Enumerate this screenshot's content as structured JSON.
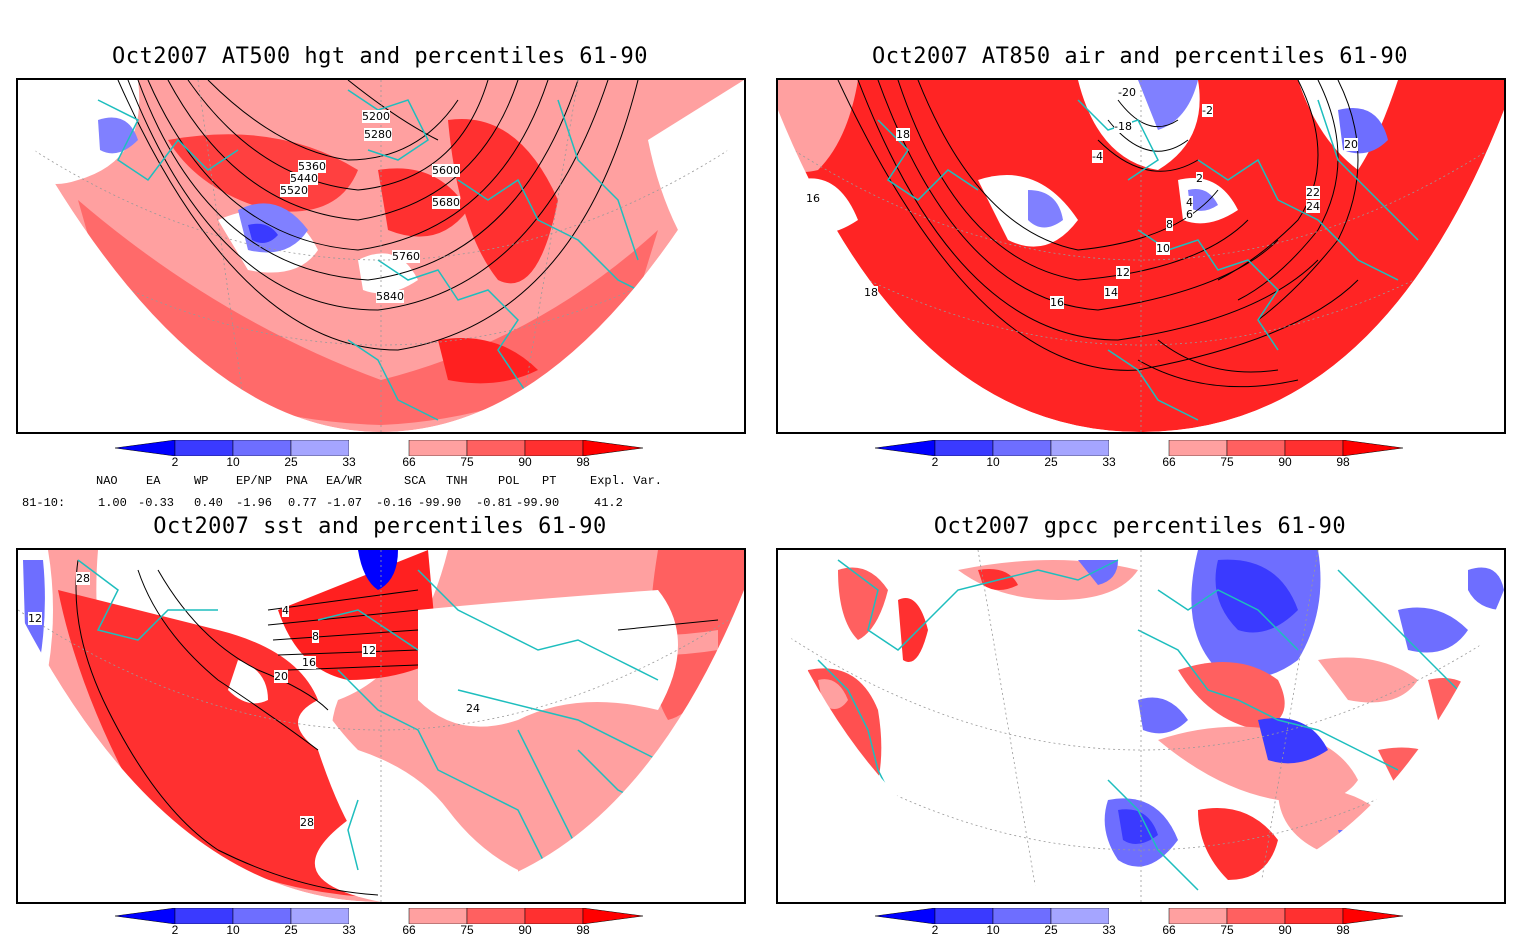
{
  "panels": [
    {
      "id": "hgt500",
      "title": "Oct2007 AT500 hgt and percentiles 61-90",
      "contour_labels": [
        "5200",
        "5280",
        "5360",
        "5440",
        "5520",
        "5600",
        "5680",
        "5760",
        "5840"
      ]
    },
    {
      "id": "air850",
      "title": "Oct2007 AT850 air and percentiles 61-90",
      "contour_labels": [
        "18",
        "16",
        "-2",
        "-4",
        "2",
        "4",
        "6",
        "8",
        "10",
        "12",
        "14",
        "16",
        "18",
        "20",
        "22",
        "24",
        "-18",
        "-20"
      ]
    },
    {
      "id": "sst",
      "title": "Oct2007 sst and percentiles 61-90",
      "contour_labels": [
        "28",
        "12",
        "4",
        "8",
        "12",
        "16",
        "20",
        "24",
        "28"
      ]
    },
    {
      "id": "gpcc",
      "title": "Oct2007 gpcc percentiles 61-90",
      "contour_labels": []
    }
  ],
  "colorbar": {
    "labels": [
      "2",
      "10",
      "25",
      "33",
      "66",
      "75",
      "90",
      "98"
    ],
    "colors": [
      "#0000ff",
      "#3a3aff",
      "#6e6eff",
      "#a5a5ff",
      "#ffffff",
      "#ffa0a0",
      "#ff6060",
      "#ff3030",
      "#ff0000"
    ]
  },
  "indices": {
    "headers": [
      "NAO",
      "EA",
      "WP",
      "EP/NP",
      "PNA",
      "EA/WR",
      "SCA",
      "TNH",
      "POL",
      "PT",
      "Expl. Var."
    ],
    "row_label": "81-10:",
    "values": [
      "1.00",
      "-0.33",
      "0.40",
      "-1.96",
      "0.77",
      "-1.07",
      "-0.16",
      "-99.90",
      "-0.81",
      "-99.90",
      "41.2"
    ]
  }
}
